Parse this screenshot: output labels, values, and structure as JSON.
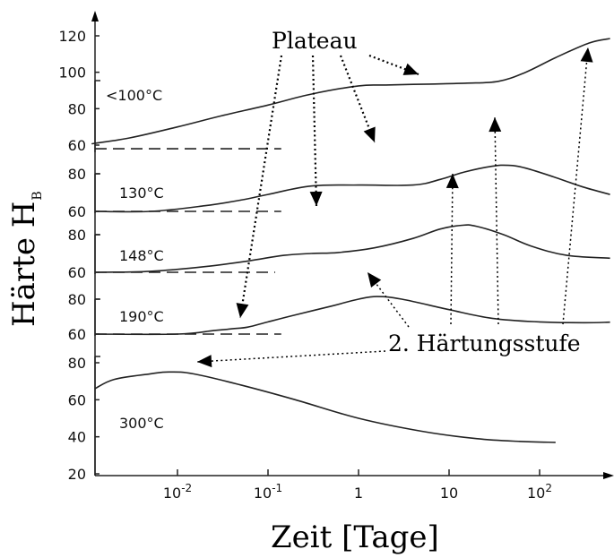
{
  "chart_data": {
    "type": "line",
    "xlabel": "Zeit [Tage]",
    "ylabel": "Härte H",
    "ylabel_sub": "B",
    "x_scale": "log",
    "xlim": [
      0.0006,
      650
    ],
    "x_ticks": [
      {
        "value": 0.01,
        "base": "10",
        "exp": "-2"
      },
      {
        "value": 0.1,
        "base": "10",
        "exp": "-1"
      },
      {
        "value": 1,
        "label": "1"
      },
      {
        "value": 10,
        "label": "10"
      },
      {
        "value": 100,
        "base": "10",
        "exp": "2"
      }
    ],
    "panels": [
      {
        "temperature": "<100°C",
        "y_ticks": [
          60,
          80,
          100,
          120
        ],
        "ylim": [
          55,
          122
        ],
        "baseline": 58,
        "baseline_dash_until": 0.14,
        "points": [
          [
            0.0006,
            61
          ],
          [
            0.001,
            61
          ],
          [
            0.003,
            64
          ],
          [
            0.01,
            70
          ],
          [
            0.03,
            76
          ],
          [
            0.1,
            82
          ],
          [
            0.3,
            88
          ],
          [
            1,
            92.5
          ],
          [
            2,
            93
          ],
          [
            6,
            93.5
          ],
          [
            15,
            94
          ],
          [
            35,
            95
          ],
          [
            70,
            100
          ],
          [
            150,
            108
          ],
          [
            350,
            116
          ],
          [
            600,
            118.5
          ]
        ]
      },
      {
        "temperature": "130°C",
        "y_ticks": [
          60,
          80
        ],
        "ylim": [
          55,
          85
        ],
        "baseline": 60,
        "baseline_dash_until": 0.14,
        "points": [
          [
            0.0006,
            60
          ],
          [
            0.005,
            60
          ],
          [
            0.02,
            63
          ],
          [
            0.05,
            66
          ],
          [
            0.1,
            69
          ],
          [
            0.3,
            73.5
          ],
          [
            1,
            74
          ],
          [
            4,
            74
          ],
          [
            8,
            77
          ],
          [
            15,
            81
          ],
          [
            30,
            84
          ],
          [
            45,
            84.5
          ],
          [
            70,
            83
          ],
          [
            150,
            78
          ],
          [
            300,
            73
          ],
          [
            600,
            69
          ]
        ]
      },
      {
        "temperature": "148°C",
        "y_ticks": [
          60,
          80
        ],
        "ylim": [
          55,
          85
        ],
        "baseline": 60,
        "baseline_dash_until": 0.12,
        "points": [
          [
            0.0006,
            60
          ],
          [
            0.005,
            60.5
          ],
          [
            0.02,
            63
          ],
          [
            0.06,
            66
          ],
          [
            0.15,
            69
          ],
          [
            0.3,
            70
          ],
          [
            0.6,
            70.5
          ],
          [
            1.5,
            73
          ],
          [
            4,
            78
          ],
          [
            8,
            83
          ],
          [
            14,
            85
          ],
          [
            20,
            84.5
          ],
          [
            40,
            80
          ],
          [
            80,
            74
          ],
          [
            200,
            69
          ],
          [
            600,
            67.5
          ]
        ]
      },
      {
        "temperature": "190°C",
        "y_ticks": [
          60,
          80
        ],
        "ylim": [
          55,
          85
        ],
        "baseline": 60,
        "baseline_dash_until": 0.14,
        "points": [
          [
            0.0006,
            60
          ],
          [
            0.01,
            60
          ],
          [
            0.025,
            62
          ],
          [
            0.04,
            63
          ],
          [
            0.06,
            64
          ],
          [
            0.1,
            67
          ],
          [
            0.2,
            71
          ],
          [
            0.5,
            76
          ],
          [
            1,
            80
          ],
          [
            1.6,
            81.5
          ],
          [
            3,
            80
          ],
          [
            10,
            74
          ],
          [
            30,
            69
          ],
          [
            100,
            67
          ],
          [
            300,
            66.5
          ],
          [
            600,
            66.8
          ]
        ]
      },
      {
        "temperature": "300°C",
        "y_ticks": [
          20,
          40,
          60,
          80
        ],
        "ylim": [
          20,
          87
        ],
        "points": [
          [
            0.0006,
            66
          ],
          [
            0.002,
            71
          ],
          [
            0.005,
            74
          ],
          [
            0.008,
            75
          ],
          [
            0.015,
            74
          ],
          [
            0.05,
            68
          ],
          [
            0.2,
            60
          ],
          [
            1,
            50
          ],
          [
            5,
            43
          ],
          [
            20,
            39
          ],
          [
            60,
            37.5
          ],
          [
            150,
            37
          ]
        ]
      }
    ],
    "annotations": [
      "Plateau",
      "2. Härtungsstufe"
    ]
  }
}
